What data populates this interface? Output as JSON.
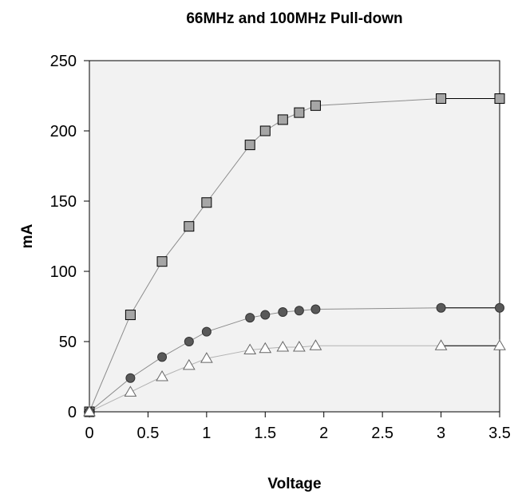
{
  "chart_data": {
    "type": "line",
    "title": "66MHz and 100MHz Pull-down",
    "xlabel": "Voltage",
    "ylabel": "mA",
    "xlim": [
      0,
      3.5
    ],
    "ylim": [
      0,
      250
    ],
    "xticks": [
      0,
      0.5,
      1,
      1.5,
      2,
      2.5,
      3,
      3.5
    ],
    "xtick_labels": [
      "0",
      "0.5",
      "1",
      "1.5",
      "2",
      "2.5",
      "3",
      "3.5"
    ],
    "yticks": [
      0,
      50,
      100,
      150,
      200,
      250
    ],
    "ytick_labels": [
      "0",
      "50",
      "100",
      "150",
      "200",
      "250"
    ],
    "grid": false,
    "legend": "none",
    "plot_background": "#f2f2f2",
    "series": [
      {
        "marker": "square",
        "line_color": "#8c8c8c",
        "marker_fill": "#a6a6a6",
        "x": [
          0,
          0.35,
          0.62,
          0.85,
          1.0,
          1.37,
          1.5,
          1.65,
          1.79,
          1.93,
          3.0,
          3.5
        ],
        "y": [
          0,
          69,
          107,
          132,
          149,
          190,
          200,
          208,
          213,
          218,
          223,
          223
        ]
      },
      {
        "marker": "circle",
        "line_color": "#8c8c8c",
        "marker_fill": "#595959",
        "x": [
          0,
          0.35,
          0.62,
          0.85,
          1.0,
          1.37,
          1.5,
          1.65,
          1.79,
          1.93,
          3.0,
          3.5
        ],
        "y": [
          0,
          24,
          39,
          50,
          57,
          67,
          69,
          71,
          72,
          73,
          74,
          74
        ]
      },
      {
        "marker": "triangle",
        "line_color": "#b3b3b3",
        "marker_fill": "#ffffff",
        "x": [
          0,
          0.35,
          0.62,
          0.85,
          1.0,
          1.37,
          1.5,
          1.65,
          1.79,
          1.93,
          3.0,
          3.5
        ],
        "y": [
          0,
          14,
          25,
          33,
          38,
          44,
          45,
          46,
          46,
          47,
          47,
          47
        ]
      }
    ]
  }
}
